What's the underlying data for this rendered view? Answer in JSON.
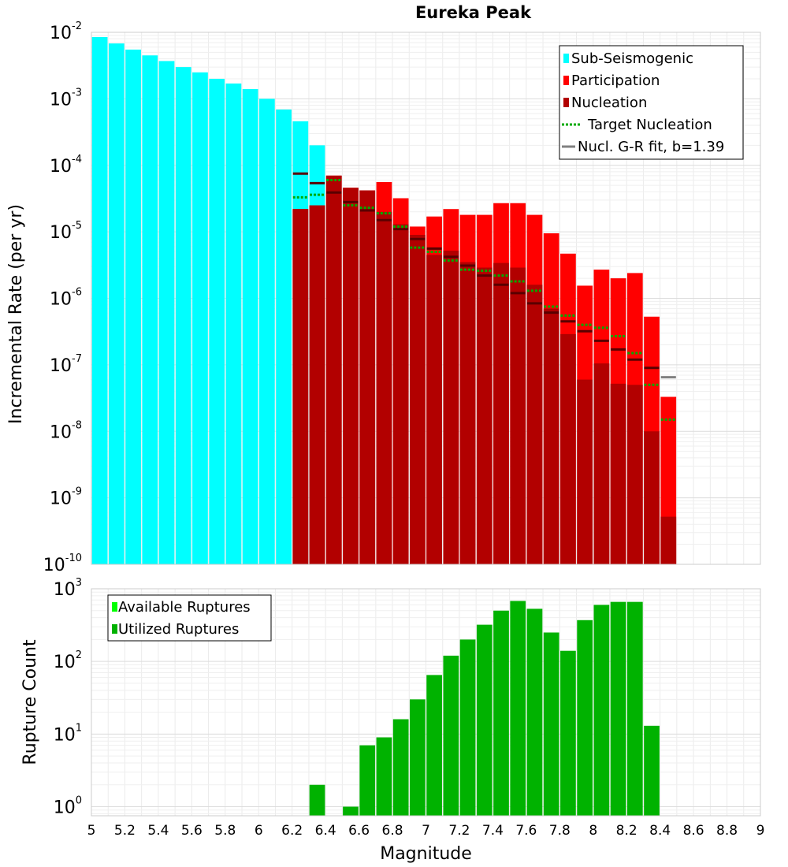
{
  "chart_data": [
    {
      "type": "bar",
      "title": "Eureka Peak",
      "ylabel": "Incremental Rate (per yr)",
      "xlabel": "",
      "xlim": [
        5,
        9
      ],
      "ylim": [
        1e-10,
        0.01
      ],
      "y_scale": "log",
      "y_tick_labels": [
        {
          "base": "10",
          "exp": "-10",
          "value": 1e-10
        },
        {
          "base": "10",
          "exp": "-9",
          "value": 1e-09
        },
        {
          "base": "10",
          "exp": "-8",
          "value": 1e-08
        },
        {
          "base": "10",
          "exp": "-7",
          "value": 1e-07
        },
        {
          "base": "10",
          "exp": "-6",
          "value": 1e-06
        },
        {
          "base": "10",
          "exp": "-5",
          "value": 1e-05
        },
        {
          "base": "10",
          "exp": "-4",
          "value": 0.0001
        },
        {
          "base": "10",
          "exp": "-3",
          "value": 0.001
        },
        {
          "base": "10",
          "exp": "-2",
          "value": 0.01
        }
      ],
      "grid": true,
      "legend_position": "top-right",
      "legend": [
        {
          "label": "Sub-Seismogenic",
          "color": "#00ffff",
          "style": "bar"
        },
        {
          "label": "Participation",
          "color": "#ff0000",
          "style": "bar"
        },
        {
          "label": "Nucleation",
          "color": "#b20000",
          "style": "bar"
        },
        {
          "label": "Target Nucleation",
          "color": "#00aa00",
          "style": "dotted"
        },
        {
          "label": "Nucl. G-R fit, b=1.39",
          "color": "#808080",
          "style": "line"
        }
      ],
      "series": [
        {
          "name": "Sub-Seismogenic",
          "color": "#00ffff",
          "x": [
            5.05,
            5.15,
            5.25,
            5.35,
            5.45,
            5.55,
            5.65,
            5.75,
            5.85,
            5.95,
            6.05,
            6.15,
            6.25,
            6.35
          ],
          "values": [
            0.0085,
            0.0068,
            0.0055,
            0.0045,
            0.0037,
            0.003,
            0.0025,
            0.002,
            0.0017,
            0.0014,
            0.001,
            0.00069,
            0.00046,
            0.0002
          ]
        },
        {
          "name": "Participation",
          "color": "#ff0000",
          "x": [
            6.25,
            6.35,
            6.45,
            6.55,
            6.65,
            6.75,
            6.85,
            6.95,
            7.05,
            7.15,
            7.25,
            7.35,
            7.45,
            7.55,
            7.65,
            7.75,
            7.85,
            7.95,
            8.05,
            8.15,
            8.25,
            8.35,
            8.45
          ],
          "values": [
            2.2e-05,
            2.5e-05,
            7e-05,
            4.6e-05,
            4.2e-05,
            5.6e-05,
            3.2e-05,
            1.2e-05,
            1.7e-05,
            2.2e-05,
            1.8e-05,
            1.8e-05,
            2.7e-05,
            2.7e-05,
            1.8e-05,
            9.5e-06,
            4.7e-06,
            1.55e-06,
            2.7e-06,
            2e-06,
            2.4e-06,
            5.3e-07,
            3.3e-08
          ]
        },
        {
          "name": "Nucleation",
          "color": "#b20000",
          "x": [
            6.25,
            6.35,
            6.45,
            6.55,
            6.65,
            6.75,
            6.85,
            6.95,
            7.05,
            7.15,
            7.25,
            7.35,
            7.45,
            7.55,
            7.65,
            7.75,
            7.85,
            7.95,
            8.05,
            8.15,
            8.25,
            8.35,
            8.45
          ],
          "values": [
            2.2e-05,
            2.5e-05,
            7e-05,
            4.6e-05,
            4.2e-05,
            2e-05,
            1.3e-05,
            9e-06,
            4.5e-06,
            5.2e-06,
            3.5e-06,
            2.9e-06,
            3.4e-06,
            2.9e-06,
            1.6e-06,
            7e-07,
            2.9e-07,
            6e-08,
            1.05e-07,
            5.2e-08,
            5e-08,
            1e-08,
            5.2e-10
          ]
        },
        {
          "name": "Target Nucleation",
          "color": "#00aa00",
          "x": [
            6.25,
            6.35,
            6.45,
            6.55,
            6.65,
            6.75,
            6.85,
            6.95,
            7.05,
            7.15,
            7.25,
            7.35,
            7.45,
            7.55,
            7.65,
            7.75,
            7.85,
            7.95,
            8.05,
            8.15,
            8.25,
            8.35,
            8.45
          ],
          "values": [
            3.3e-05,
            3.6e-05,
            6e-05,
            2.5e-05,
            2.3e-05,
            1.9e-05,
            1.2e-05,
            5.8e-06,
            5e-06,
            3.7e-06,
            2.7e-06,
            2.6e-06,
            2.2e-06,
            1.8e-06,
            1.3e-06,
            7.5e-07,
            5.5e-07,
            4e-07,
            3.6e-07,
            2.7e-07,
            1.5e-07,
            5e-08,
            1.5e-08
          ]
        },
        {
          "name": "Nucl. G-R fit, b=1.39",
          "color": "#808080",
          "x": [
            6.25,
            6.35,
            6.45,
            6.55,
            6.65,
            6.75,
            6.85,
            6.95,
            7.05,
            7.15,
            7.25,
            7.35,
            7.45,
            7.55,
            7.65,
            7.75,
            7.85,
            7.95,
            8.05,
            8.15,
            8.25,
            8.35,
            8.45
          ],
          "values": [
            7.5e-05,
            5.4e-05,
            3.9e-05,
            2.8e-05,
            2.1e-05,
            1.5e-05,
            1.1e-05,
            7.8e-06,
            5.6e-06,
            4.2e-06,
            3.1e-06,
            2.2e-06,
            1.6e-06,
            1.2e-06,
            8.4e-07,
            6.1e-07,
            4.5e-07,
            3.2e-07,
            2.3e-07,
            1.7e-07,
            1.2e-07,
            9e-08,
            6.5e-08
          ]
        }
      ]
    },
    {
      "type": "bar",
      "title": "",
      "ylabel": "Rupture Count",
      "xlabel": "Magnitude",
      "xlim": [
        5,
        9
      ],
      "ylim": [
        0.75,
        1000
      ],
      "y_scale": "log",
      "y_tick_labels": [
        {
          "base": "10",
          "exp": "0",
          "value": 1
        },
        {
          "base": "10",
          "exp": "1",
          "value": 10
        },
        {
          "base": "10",
          "exp": "2",
          "value": 100
        },
        {
          "base": "10",
          "exp": "3",
          "value": 1000
        }
      ],
      "x_tick_labels": [
        "5",
        "5.2",
        "5.4",
        "5.6",
        "5.8",
        "6",
        "6.2",
        "6.4",
        "6.6",
        "6.8",
        "7",
        "7.2",
        "7.4",
        "7.6",
        "7.8",
        "8",
        "8.2",
        "8.4",
        "8.6",
        "8.8",
        "9"
      ],
      "x_ticks": [
        5,
        5.2,
        5.4,
        5.6,
        5.8,
        6,
        6.2,
        6.4,
        6.6,
        6.8,
        7,
        7.2,
        7.4,
        7.6,
        7.8,
        8,
        8.2,
        8.4,
        8.6,
        8.8,
        9
      ],
      "grid": true,
      "legend_position": "top-left",
      "legend": [
        {
          "label": "Available Ruptures",
          "color": "#00ff00",
          "style": "bar"
        },
        {
          "label": "Utilized Ruptures",
          "color": "#00b200",
          "style": "bar"
        }
      ],
      "series": [
        {
          "name": "Utilized Ruptures",
          "color": "#00b200",
          "x": [
            6.35,
            6.55,
            6.65,
            6.75,
            6.85,
            6.95,
            7.05,
            7.15,
            7.25,
            7.35,
            7.45,
            7.55,
            7.65,
            7.75,
            7.85,
            7.95,
            8.05,
            8.15,
            8.25,
            8.35
          ],
          "values": [
            2,
            1,
            7,
            9,
            16,
            30,
            65,
            120,
            200,
            320,
            500,
            680,
            530,
            250,
            140,
            370,
            600,
            660,
            660,
            13
          ]
        }
      ]
    }
  ]
}
